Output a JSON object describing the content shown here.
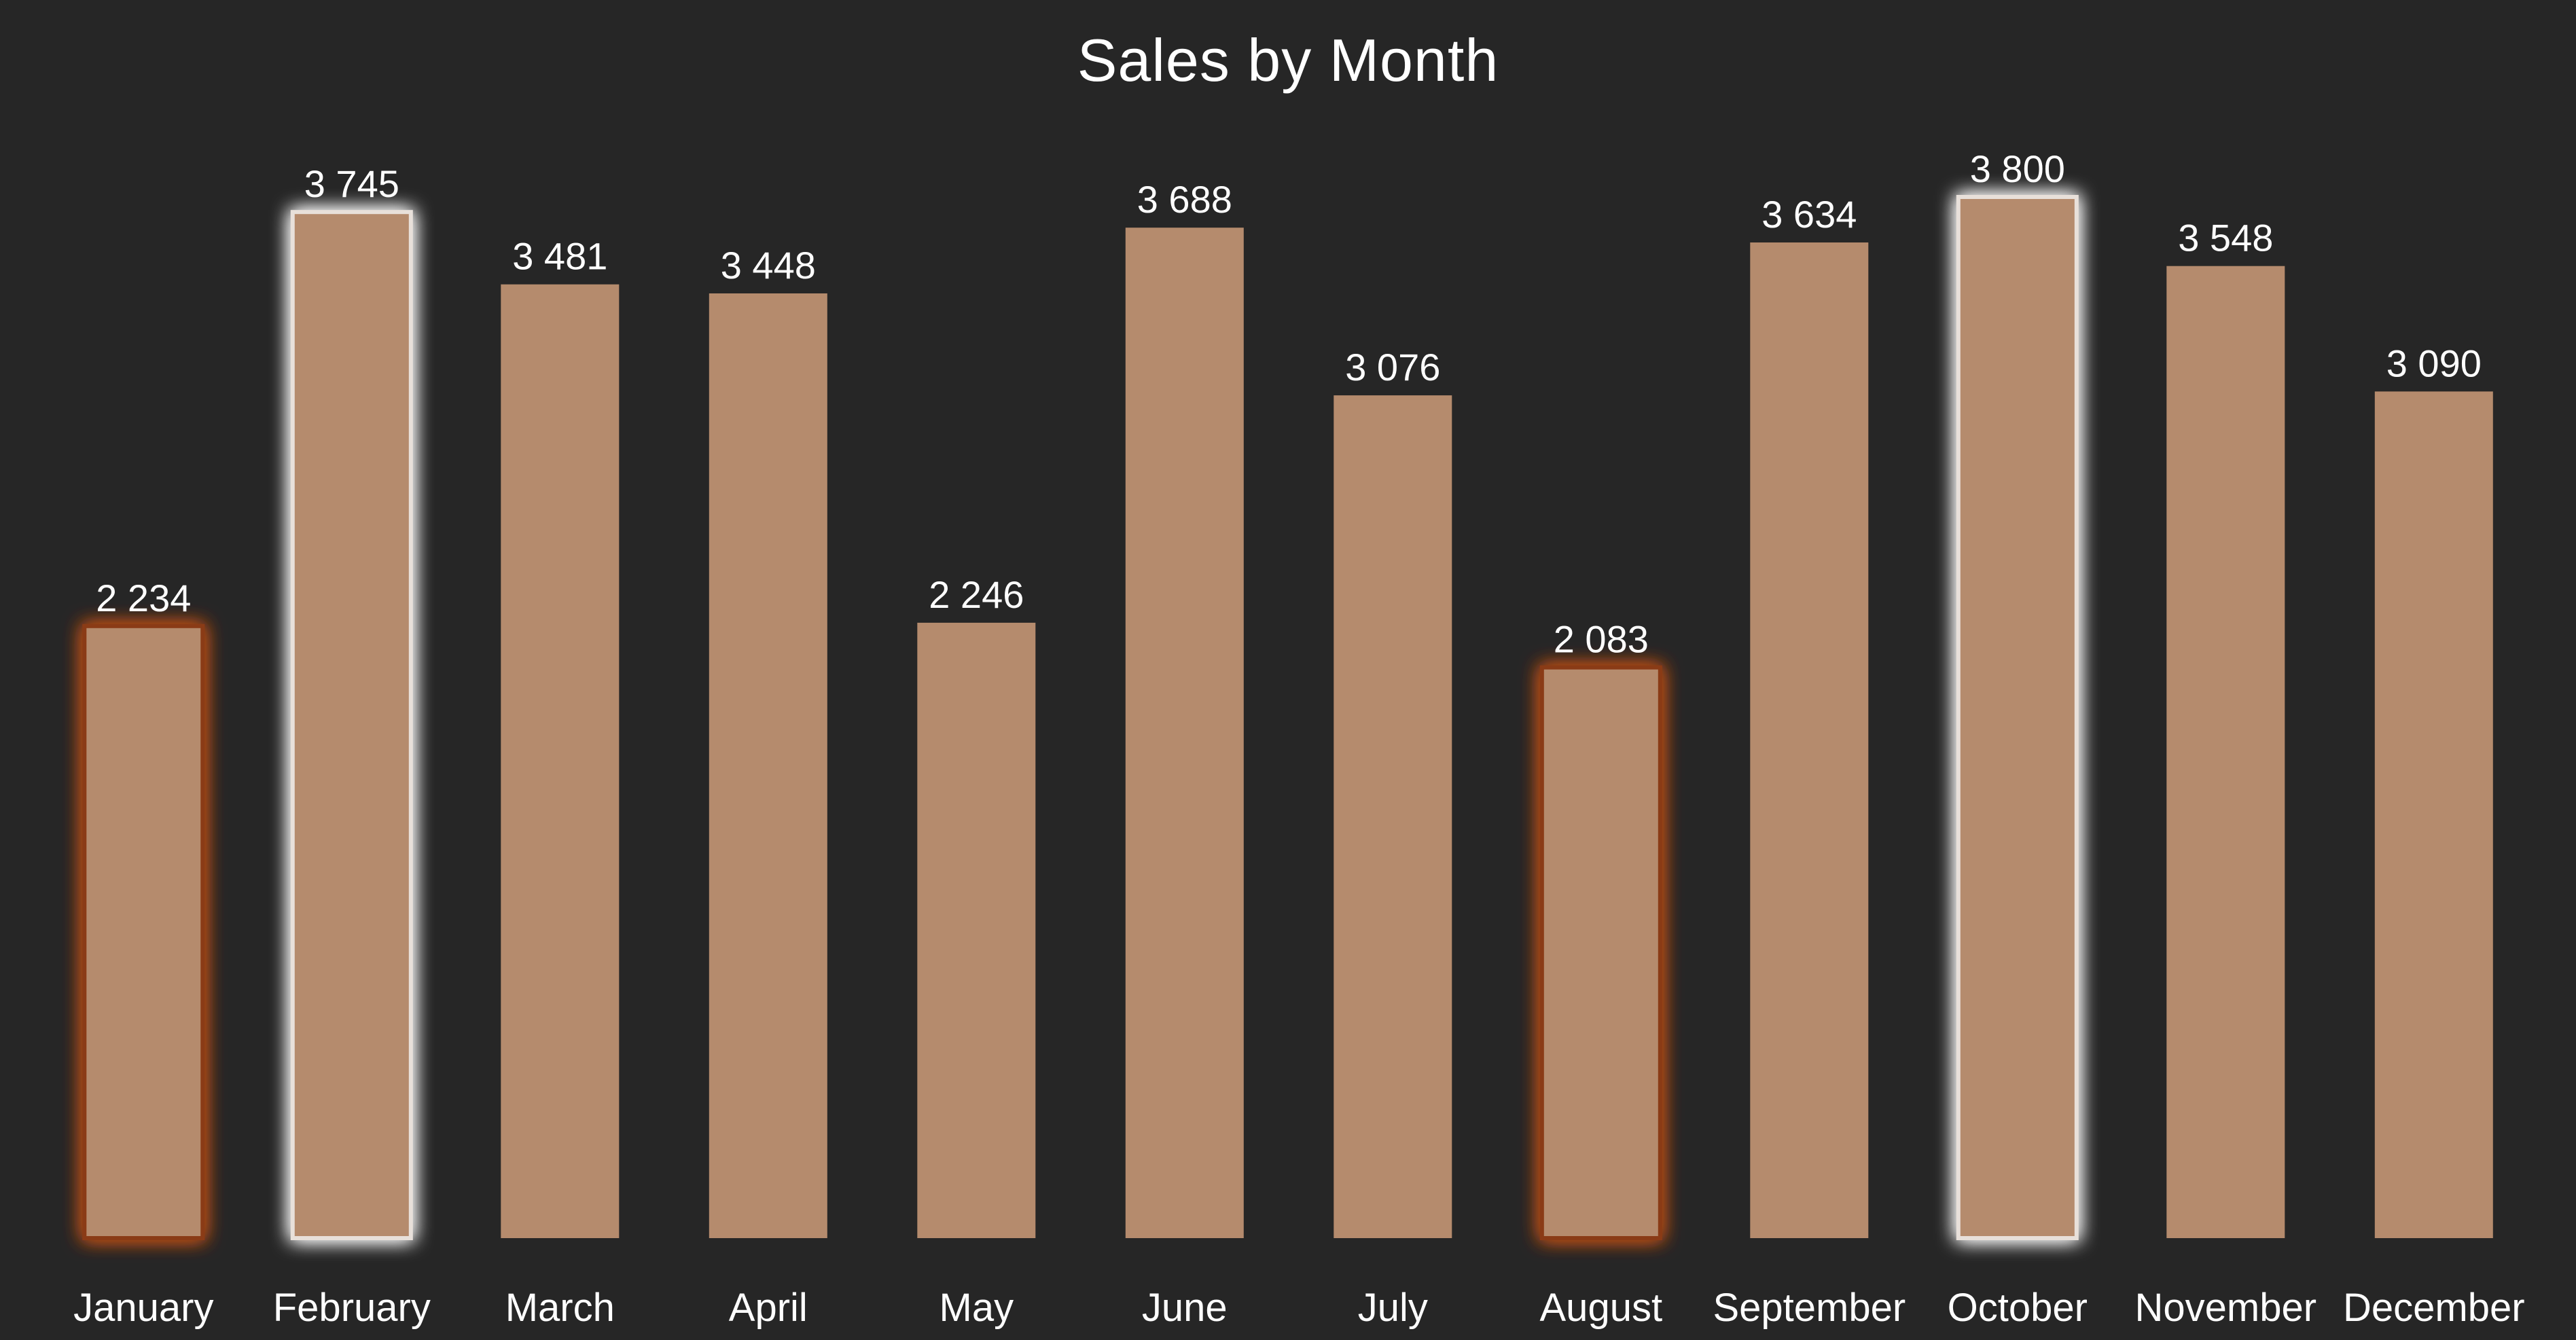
{
  "chart_data": {
    "type": "bar",
    "title": "Sales by Month",
    "xlabel": "",
    "ylabel": "",
    "categories": [
      "January",
      "February",
      "March",
      "April",
      "May",
      "June",
      "July",
      "August",
      "September",
      "October",
      "November",
      "December"
    ],
    "values": [
      2234,
      3745,
      3481,
      3448,
      2246,
      3688,
      3076,
      2083,
      3634,
      3800,
      3548,
      3090
    ],
    "data_labels": [
      "2 234",
      "3 745",
      "3 481",
      "3 448",
      "2 246",
      "3 688",
      "3 076",
      "2 083",
      "3 634",
      "3 800",
      "3 548",
      "3 090"
    ],
    "highlight": {
      "max_months": [
        "February",
        "October"
      ],
      "min_months": [
        "January",
        "August"
      ]
    },
    "ylim": [
      0,
      3800
    ],
    "grid": false,
    "legend": "none",
    "colors": {
      "background": "#262626",
      "bar": "#b58b6d",
      "text": "#ffffff",
      "max_glow": "#ffffff",
      "min_glow": "#c0501a"
    }
  }
}
